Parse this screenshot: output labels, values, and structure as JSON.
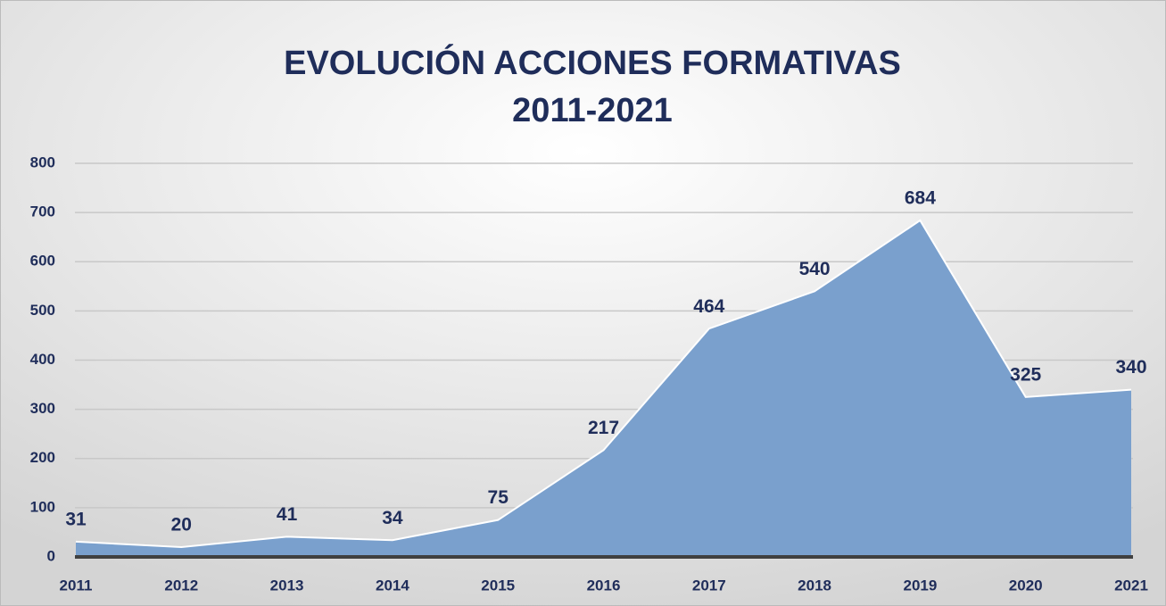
{
  "chart_data": {
    "type": "area",
    "title": [
      "EVOLUCIÓN ACCIONES FORMATIVAS",
      "2011-2021"
    ],
    "categories": [
      "2011",
      "2012",
      "2013",
      "2014",
      "2015",
      "2016",
      "2017",
      "2018",
      "2019",
      "2020",
      "2021"
    ],
    "values": [
      31,
      20,
      41,
      34,
      75,
      217,
      464,
      540,
      684,
      325,
      340
    ],
    "color": "#7aa0cd",
    "ylim": [
      0,
      800
    ],
    "yticks": [
      0,
      100,
      200,
      300,
      400,
      500,
      600,
      700,
      800
    ],
    "grid": true
  }
}
